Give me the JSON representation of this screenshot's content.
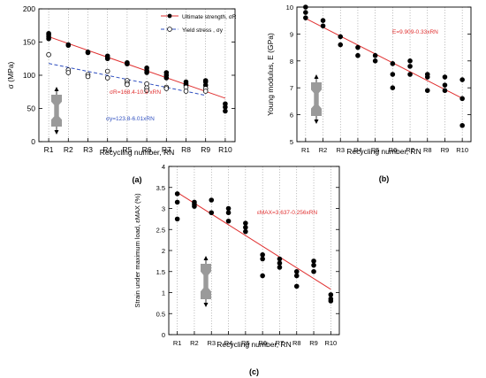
{
  "chart_data": [
    {
      "id": "a",
      "type": "scatter",
      "panel_label": "(a)",
      "title": "",
      "xlabel": "Recycling number, RN",
      "ylabel": "σ (MPa)",
      "ylim": [
        0,
        200
      ],
      "yticks": [
        0,
        50,
        100,
        150,
        200
      ],
      "ytick_labels": [
        "0",
        "50",
        "100",
        "150",
        "200"
      ],
      "categories": [
        "R1",
        "R2",
        "R3",
        "R4",
        "R5",
        "R6",
        "R7",
        "R8",
        "R9",
        "R10"
      ],
      "grid": "vertical dotted",
      "legend": {
        "placement": "top-right",
        "entries": [
          {
            "label": "Ultimate strength, σR",
            "marker": "filled-circle",
            "line": "solid"
          },
          {
            "label": "Yield stress , σy",
            "marker": "open-circle",
            "line": "dashed"
          }
        ]
      },
      "series": [
        {
          "name": "Ultimate strength, σR",
          "marker": "filled",
          "color": "#000000",
          "points": [
            [
              1,
              155
            ],
            [
              1,
              158
            ],
            [
              1,
              161
            ],
            [
              1,
              163
            ],
            [
              2,
              146
            ],
            [
              2,
              145
            ],
            [
              3,
              135
            ],
            [
              3,
              134
            ],
            [
              4,
              129
            ],
            [
              4,
              126
            ],
            [
              4,
              125
            ],
            [
              5,
              119
            ],
            [
              5,
              118
            ],
            [
              5,
              117
            ],
            [
              6,
              111
            ],
            [
              6,
              107
            ],
            [
              6,
              104
            ],
            [
              7,
              104
            ],
            [
              7,
              100
            ],
            [
              7,
              96
            ],
            [
              8,
              90
            ],
            [
              8,
              87
            ],
            [
              8,
              85
            ],
            [
              9,
              92
            ],
            [
              9,
              90
            ],
            [
              9,
              85
            ],
            [
              10,
              57
            ],
            [
              10,
              52
            ],
            [
              10,
              46
            ]
          ]
        },
        {
          "name": "Yield stress , σy",
          "marker": "open",
          "color": "#000000",
          "points": [
            [
              1,
              131
            ],
            [
              2,
              108
            ],
            [
              2,
              104
            ],
            [
              3,
              101
            ],
            [
              3,
              98
            ],
            [
              4,
              106
            ],
            [
              4,
              96
            ],
            [
              5,
              92
            ],
            [
              5,
              88
            ],
            [
              5,
              86
            ],
            [
              6,
              87
            ],
            [
              6,
              81
            ],
            [
              6,
              77
            ],
            [
              7,
              82
            ],
            [
              7,
              80
            ],
            [
              8,
              82
            ],
            [
              8,
              76
            ],
            [
              9,
              80
            ],
            [
              9,
              76
            ]
          ]
        }
      ],
      "fits": [
        {
          "label": "σR=168.4-10.3 xRN",
          "color": "#e03030",
          "dash": "solid",
          "intercept": 168.4,
          "slope": -10.3,
          "x": [
            1,
            10
          ]
        },
        {
          "label": "σy=123.8-6.01xRN",
          "color": "#3050c0",
          "dash": "dashed",
          "intercept": 123.8,
          "slope": -6.01,
          "x": [
            1,
            9
          ]
        }
      ]
    },
    {
      "id": "b",
      "type": "scatter",
      "panel_label": "(b)",
      "title": "",
      "xlabel": "Recycling number, RN",
      "ylabel": "Young modulus, E (GPa)",
      "ylim": [
        5,
        10
      ],
      "yticks": [
        5,
        6,
        7,
        8,
        9,
        10
      ],
      "ytick_labels": [
        "5",
        "6",
        "7",
        "8",
        "9",
        "10"
      ],
      "categories": [
        "R1",
        "R2",
        "R3",
        "R4",
        "R5",
        "R6",
        "R7",
        "R8",
        "R9",
        "R10"
      ],
      "grid": "vertical dotted",
      "series": [
        {
          "name": "",
          "marker": "filled",
          "color": "#000000",
          "points": [
            [
              1,
              10.0
            ],
            [
              1,
              9.8
            ],
            [
              1,
              9.6
            ],
            [
              2,
              9.5
            ],
            [
              2,
              9.3
            ],
            [
              3,
              8.9
            ],
            [
              3,
              8.6
            ],
            [
              4,
              8.5
            ],
            [
              4,
              8.2
            ],
            [
              5,
              8.2
            ],
            [
              5,
              8.0
            ],
            [
              6,
              7.9
            ],
            [
              6,
              7.5
            ],
            [
              6,
              7.0
            ],
            [
              7,
              8.0
            ],
            [
              7,
              7.8
            ],
            [
              7,
              7.5
            ],
            [
              8,
              7.5
            ],
            [
              8,
              7.4
            ],
            [
              8,
              6.9
            ],
            [
              9,
              7.4
            ],
            [
              9,
              7.1
            ],
            [
              9,
              6.9
            ],
            [
              10,
              7.3
            ],
            [
              10,
              6.6
            ],
            [
              10,
              5.6
            ]
          ]
        }
      ],
      "fits": [
        {
          "label": "E=9.909-0.33xRN",
          "color": "#e03030",
          "dash": "solid",
          "intercept": 9.909,
          "slope": -0.33,
          "x": [
            1,
            10
          ]
        }
      ]
    },
    {
      "id": "c",
      "type": "scatter",
      "panel_label": "(c)",
      "title": "",
      "xlabel": "Recycling number, RN",
      "ylabel": "Strain under maximum load, εMAX (%)",
      "ylim": [
        0,
        4
      ],
      "yticks": [
        0,
        0.5,
        1,
        1.5,
        2,
        2.5,
        3,
        3.5,
        4
      ],
      "ytick_labels": [
        "0",
        "0.5",
        "1",
        "1.5",
        "2",
        "2.5",
        "3",
        "3.5",
        "4"
      ],
      "categories": [
        "R1",
        "R2",
        "R3",
        "R4",
        "R5",
        "R6",
        "R7",
        "R8",
        "R9",
        "R10"
      ],
      "grid": "vertical dotted",
      "series": [
        {
          "name": "",
          "marker": "filled",
          "color": "#000000",
          "points": [
            [
              1,
              3.35
            ],
            [
              1,
              3.15
            ],
            [
              1,
              2.75
            ],
            [
              2,
              3.15
            ],
            [
              2,
              3.1
            ],
            [
              2,
              3.05
            ],
            [
              3,
              3.2
            ],
            [
              3,
              2.9
            ],
            [
              4,
              3.0
            ],
            [
              4,
              2.9
            ],
            [
              4,
              2.7
            ],
            [
              5,
              2.65
            ],
            [
              5,
              2.55
            ],
            [
              5,
              2.45
            ],
            [
              6,
              1.9
            ],
            [
              6,
              1.8
            ],
            [
              6,
              1.4
            ],
            [
              7,
              1.8
            ],
            [
              7,
              1.7
            ],
            [
              7,
              1.6
            ],
            [
              8,
              1.5
            ],
            [
              8,
              1.4
            ],
            [
              8,
              1.15
            ],
            [
              9,
              1.75
            ],
            [
              9,
              1.65
            ],
            [
              9,
              1.5
            ],
            [
              10,
              0.95
            ],
            [
              10,
              0.85
            ],
            [
              10,
              0.8
            ]
          ]
        }
      ],
      "fits": [
        {
          "label": "εMAX=3.637-0.256xRN",
          "color": "#e03030",
          "dash": "solid",
          "intercept": 3.637,
          "slope": -0.256,
          "x": [
            1,
            10
          ]
        }
      ]
    }
  ]
}
